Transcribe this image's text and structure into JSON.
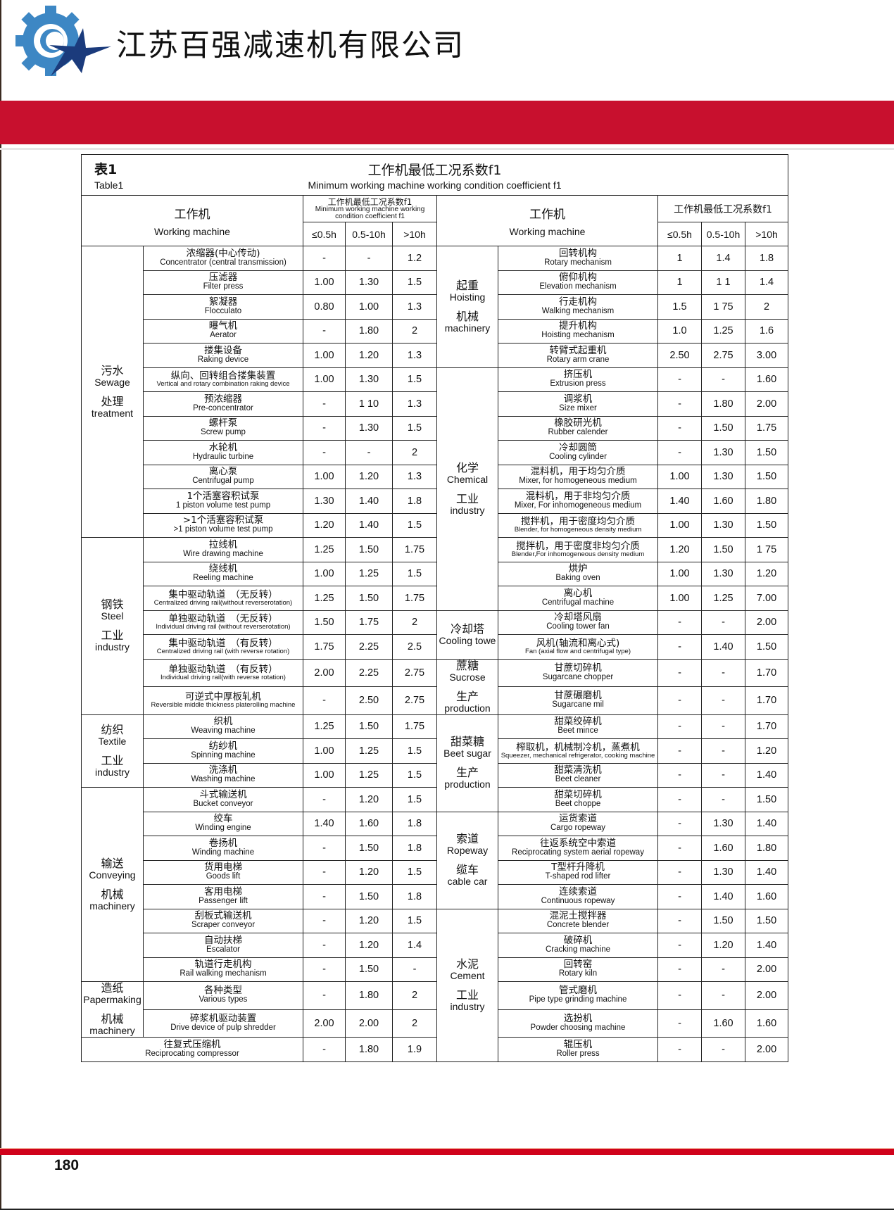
{
  "header": {
    "company_name": "江苏百强减速机有限公司",
    "logo": "gear-and-star-logo",
    "brand_colors": {
      "gear": "#3d87c4",
      "star": "#1b3b7c",
      "band": "#c8102e",
      "footer_band": "#d0021b"
    }
  },
  "table": {
    "number_zh": "表1",
    "number_en": "Table1",
    "title_zh": "工作机最低工况系数f1",
    "title_en": "Minimum working machine working condition coefficient f1",
    "col_machine_zh": "工作机",
    "col_machine_en": "Working machine",
    "col_coef_zh": "工作机最低工况系数f1",
    "col_coef_en": "Minimum working machine working condition coefficient f1",
    "sub_cols": [
      "≤0.5h",
      "0.5-10h",
      ">10h"
    ],
    "left_groups": [
      {
        "cat": [
          "污水",
          "Sewage",
          "处理",
          "treatment"
        ],
        "rows": [
          [
            "浓缩器(中心传动)",
            "Concentrator (central transmission)",
            "-",
            "-",
            "1.2"
          ],
          [
            "压滤器",
            "Filter press",
            "1.00",
            "1.30",
            "1.5"
          ],
          [
            "絮凝器",
            "Flocculato",
            "0.80",
            "1.00",
            "1.3"
          ],
          [
            "曝气机",
            "Aerator",
            "-",
            "1.80",
            "2"
          ],
          [
            "搂集设备",
            "Raking device",
            "1.00",
            "1.20",
            "1.3"
          ],
          [
            "纵向、回转组合搂集装置",
            "Vertical and rotary combination raking device",
            "1.00",
            "1.30",
            "1.5"
          ],
          [
            "预浓缩器",
            "Pre-concentrator",
            "-",
            "1 10",
            "1.3"
          ],
          [
            "螺杆泵",
            "Screw pump",
            "-",
            "1.30",
            "1.5"
          ],
          [
            "水轮机",
            "Hydraulic turbine",
            "-",
            "-",
            "2"
          ],
          [
            "离心泵",
            "Centrifugal pump",
            "1.00",
            "1.20",
            "1.3"
          ],
          [
            "1个活塞容积试泵",
            "1 piston volume test pump",
            "1.30",
            "1.40",
            "1.8"
          ],
          [
            ">1个活塞容积试泵",
            ">1 piston volume test pump",
            "1.20",
            "1.40",
            "1.5"
          ]
        ]
      },
      {
        "cat": [
          "钢铁",
          "Steel",
          "工业",
          "industry"
        ],
        "rows": [
          [
            "拉线机",
            "Wire drawing machine",
            "1.25",
            "1.50",
            "1.75"
          ],
          [
            "绕线机",
            "Reeling machine",
            "1.00",
            "1.25",
            "1.5"
          ],
          [
            "集中驱动轨道　（无反转）",
            "Centralized driving rail(without reverserotation)",
            "1.25",
            "1.50",
            "1.75"
          ],
          [
            "单独驱动轨道　（无反转）",
            "Individual driving rail (without reverserotation)",
            "1.50",
            "1.75",
            "2"
          ],
          [
            "集中驱动轨道　（有反转）",
            "Centralized driving rail (with reverse rotation)",
            "1.75",
            "2.25",
            "2.5"
          ],
          [
            "单独驱动轨道　（有反转）",
            "Individual driving rail(with reverse rotation)",
            "2.00",
            "2.25",
            "2.75"
          ],
          [
            "可逆式中厚板轧机",
            "Reversible middle thickness platerolling machine",
            "-",
            "2.50",
            "2.75"
          ]
        ]
      },
      {
        "cat": [
          "纺织",
          "Textile",
          "工业",
          "industry"
        ],
        "rows": [
          [
            "织机",
            "Weaving machine",
            "1.25",
            "1.50",
            "1.75"
          ],
          [
            "纺纱机",
            "Spinning machine",
            "1.00",
            "1.25",
            "1.5"
          ],
          [
            "洗涤机",
            "Washing machine",
            "1.00",
            "1.25",
            "1.5"
          ]
        ]
      },
      {
        "cat": [
          "输送",
          "Conveying",
          "机械",
          "machinery"
        ],
        "rows": [
          [
            "斗式输送机",
            "Bucket conveyor",
            "-",
            "1.20",
            "1.5"
          ],
          [
            "绞车",
            "Winding engine",
            "1.40",
            "1.60",
            "1.8"
          ],
          [
            "卷扬机",
            "Winding machine",
            "-",
            "1.50",
            "1.8"
          ],
          [
            "货用电梯",
            "Goods lift",
            "-",
            "1.20",
            "1.5"
          ],
          [
            "客用电梯",
            "Passenger lift",
            "-",
            "1.50",
            "1.8"
          ],
          [
            "刮板式输送机",
            "Scraper conveyor",
            "-",
            "1.20",
            "1.5"
          ],
          [
            "自动扶梯",
            "Escalator",
            "-",
            "1.20",
            "1.4"
          ],
          [
            "轨道行走机构",
            "Rail walking mechanism",
            "-",
            "1.50",
            "-"
          ]
        ]
      },
      {
        "cat": [
          "造纸",
          "Papermaking",
          "机械",
          "machinery"
        ],
        "rows": [
          [
            "各种类型",
            "Various types",
            "-",
            "1.80",
            "2"
          ],
          [
            "碎浆机驱动装置",
            "Drive device of pulp shredder",
            "2.00",
            "2.00",
            "2"
          ]
        ]
      },
      {
        "cat": [],
        "rows": [
          [
            "往复式压缩机",
            "Reciprocating compressor",
            "-",
            "1.80",
            "1.9"
          ]
        ]
      }
    ],
    "right_groups": [
      {
        "cat": [
          "起重",
          "Hoisting",
          "机械",
          "machinery"
        ],
        "rows": [
          [
            "回转机构",
            "Rotary mechanism",
            "1",
            "1.4",
            "1.8"
          ],
          [
            "俯仰机构",
            "Elevation mechanism",
            "1",
            "1 1",
            "1.4"
          ],
          [
            "行走机构",
            "Walking mechanism",
            "1.5",
            "1 75",
            "2"
          ],
          [
            "提升机构",
            "Hoisting mechanism",
            "1.0",
            "1.25",
            "1.6"
          ],
          [
            "转臂式起重机",
            "Rotary arm crane",
            "2.50",
            "2.75",
            "3.00"
          ]
        ]
      },
      {
        "cat": [
          "化学",
          "Chemical",
          "工业",
          "industry"
        ],
        "rows": [
          [
            "挤压机",
            "Extrusion press",
            "-",
            "-",
            "1.60"
          ],
          [
            "调浆机",
            "Size mixer",
            "-",
            "1.80",
            "2.00"
          ],
          [
            "橡胶研光机",
            "Rubber calender",
            "-",
            "1.50",
            "1.75"
          ],
          [
            "冷却圆筒",
            "Cooling cylinder",
            "-",
            "1.30",
            "1.50"
          ],
          [
            "混料机，用于均匀介质",
            "Mixer, for homogeneous medium",
            "1.00",
            "1.30",
            "1.50"
          ],
          [
            "混料机，用于非均匀介质",
            "Mixer, For inhomogeneous medium",
            "1.40",
            "1.60",
            "1.80"
          ],
          [
            "搅拌机，用于密度均匀介质",
            "Blender, for homogeneous density medium",
            "1.00",
            "1.30",
            "1.50"
          ],
          [
            "搅拌机，用于密度非均匀介质",
            "Blender,For inhomogeneous density medium",
            "1.20",
            "1.50",
            "1 75"
          ],
          [
            "烘炉",
            "Baking oven",
            "1.00",
            "1.30",
            "1.20"
          ],
          [
            "离心机",
            "Centrifugal machine",
            "1.00",
            "1.25",
            "7.00"
          ]
        ]
      },
      {
        "cat": [
          "冷却塔",
          "Cooling towe"
        ],
        "rows": [
          [
            "冷却塔风扇",
            "Cooling tower fan",
            "-",
            "-",
            "2.00"
          ],
          [
            "风机(轴流和离心式)",
            "Fan (axial flow and centrifugal type)",
            "-",
            "1.40",
            "1.50"
          ]
        ]
      },
      {
        "cat": [
          "蔗糖",
          "Sucrose",
          "生产",
          "production"
        ],
        "rows": [
          [
            "甘蔗切碎机",
            "Sugarcane chopper",
            "-",
            "-",
            "1.70"
          ],
          [
            "甘蔗碾磨机",
            "Sugarcane mil",
            "-",
            "-",
            "1.70"
          ]
        ]
      },
      {
        "cat": [
          "甜菜糖",
          "Beet sugar",
          "生产",
          "production"
        ],
        "rows": [
          [
            "甜菜绞碎机",
            "Beet mince",
            "-",
            "-",
            "1.70"
          ],
          [
            "榨取机，机械制冷机，蒸煮机",
            "Squeezer, mechanical refrigerator, cooking machine",
            "-",
            "-",
            "1.20"
          ],
          [
            "甜菜清洗机",
            "Beet cleaner",
            "-",
            "-",
            "1.40"
          ],
          [
            "甜菜切碎机",
            "Beet choppe",
            "-",
            "-",
            "1.50"
          ]
        ]
      },
      {
        "cat": [
          "索道",
          "Ropeway",
          "缆车",
          "cable car"
        ],
        "rows": [
          [
            "运货索道",
            "Cargo ropeway",
            "-",
            "1.30",
            "1.40"
          ],
          [
            "往返系统空中索道",
            "Reciprocating system aerial ropeway",
            "-",
            "1.60",
            "1.80"
          ],
          [
            "T型杆升降机",
            "T-shaped rod lifter",
            "-",
            "1.30",
            "1.40"
          ],
          [
            "连续索道",
            "Continuous ropeway",
            "-",
            "1.40",
            "1.60"
          ]
        ]
      },
      {
        "cat": [
          "水泥",
          "Cement",
          "工业",
          "industry"
        ],
        "rows": [
          [
            "混泥土搅拌器",
            "Concrete blender",
            "-",
            "1.50",
            "1.50"
          ],
          [
            "破碎机",
            "Cracking machine",
            "-",
            "1.20",
            "1.40"
          ],
          [
            "回转窑",
            "Rotary kiln",
            "-",
            "-",
            "2.00"
          ],
          [
            "管式磨机",
            "Pipe type grinding machine",
            "-",
            "-",
            "2.00"
          ],
          [
            "选扮机",
            "Powder choosing machine",
            "-",
            "1.60",
            "1.60"
          ],
          [
            "辊压机",
            "Roller press",
            "-",
            "-",
            "2.00"
          ]
        ]
      }
    ]
  },
  "footer": {
    "page_number": "180"
  }
}
